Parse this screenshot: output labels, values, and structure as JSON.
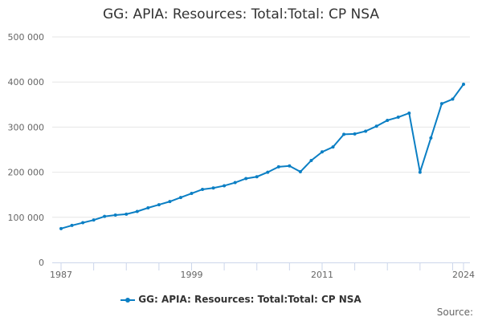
{
  "chart_data": {
    "type": "line",
    "title": "GG: APIA: Resources: Total:Total: CP NSA",
    "xlabel": "",
    "ylabel": "",
    "ylim": [
      0,
      500000
    ],
    "yticks": [
      0,
      100000,
      200000,
      300000,
      400000,
      500000
    ],
    "ytick_labels": [
      "0",
      "100 000",
      "200 000",
      "300 000",
      "400 000",
      "500 000"
    ],
    "xtick_labels": [
      "1987",
      "1999",
      "2011",
      "2024"
    ],
    "x": [
      1987,
      1988,
      1989,
      1990,
      1991,
      1992,
      1993,
      1994,
      1995,
      1996,
      1997,
      1998,
      1999,
      2000,
      2001,
      2002,
      2003,
      2004,
      2005,
      2006,
      2007,
      2008,
      2009,
      2010,
      2011,
      2012,
      2013,
      2014,
      2015,
      2016,
      2017,
      2018,
      2019,
      2020,
      2021,
      2022,
      2023,
      2024
    ],
    "series": [
      {
        "name": "GG: APIA: Resources: Total:Total: CP NSA",
        "color": "#0b7fc4",
        "values": [
          75000,
          82000,
          88000,
          94000,
          102000,
          105000,
          107000,
          113000,
          121000,
          128000,
          135000,
          144000,
          153000,
          162000,
          165000,
          170000,
          177000,
          186000,
          190000,
          200000,
          212000,
          214000,
          201000,
          226000,
          245000,
          256000,
          284000,
          285000,
          291000,
          302000,
          315000,
          322000,
          331000,
          200000,
          276000,
          352000,
          362000,
          395000
        ]
      }
    ],
    "legend": "bottom-center",
    "grid": true
  },
  "source_label": "Source:"
}
